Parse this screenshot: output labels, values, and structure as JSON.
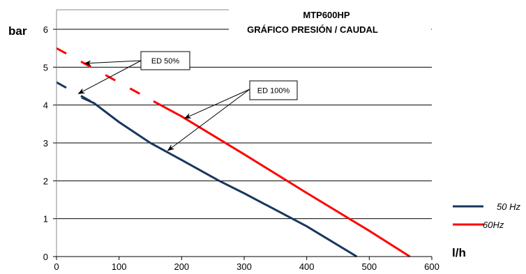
{
  "chart_data": {
    "type": "line",
    "title": "MTP600HP",
    "subtitle": "GRÁFICO  PRESIÓN / CAUDAL",
    "xlabel": "l/h",
    "ylabel": "bar",
    "xlim": [
      0,
      600
    ],
    "ylim": [
      0,
      6
    ],
    "x_ticks": [
      0,
      100,
      200,
      300,
      400,
      500,
      600
    ],
    "y_ticks": [
      0,
      1,
      2,
      3,
      4,
      5,
      6
    ],
    "grid": "horizontal",
    "legend_position": "bottom-right",
    "series": [
      {
        "name": "50 Hz",
        "color": "#17375e",
        "dashed_segment": [
          [
            0,
            4.6
          ],
          [
            60,
            4.05
          ]
        ],
        "solid_segment": [
          [
            40,
            4.2
          ],
          [
            60,
            4.05
          ],
          [
            100,
            3.55
          ],
          [
            150,
            3.0
          ],
          [
            200,
            2.55
          ],
          [
            260,
            2.0
          ],
          [
            300,
            1.67
          ],
          [
            400,
            0.8
          ],
          [
            480,
            0
          ]
        ]
      },
      {
        "name": "60Hz",
        "color": "#ff0000",
        "dashed_segment": [
          [
            0,
            5.5
          ],
          [
            155,
            4.1
          ]
        ],
        "solid_segment": [
          [
            155,
            4.1
          ],
          [
            200,
            3.7
          ],
          [
            300,
            2.7
          ],
          [
            400,
            1.68
          ],
          [
            500,
            0.68
          ],
          [
            565,
            0
          ]
        ]
      }
    ],
    "annotations": [
      {
        "label": "ED 50%",
        "targets": [
          [
            45,
            5.1
          ],
          [
            35,
            4.3
          ]
        ]
      },
      {
        "label": "ED 100%",
        "targets": [
          [
            205,
            3.65
          ],
          [
            178,
            2.8
          ]
        ]
      }
    ]
  }
}
